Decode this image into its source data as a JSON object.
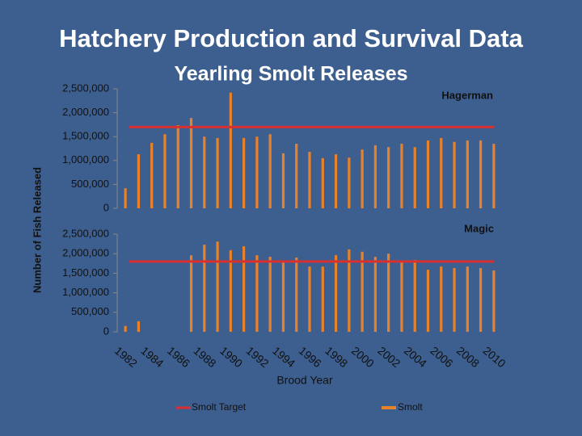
{
  "title": "Hatchery Production and Survival Data",
  "ylabel": "Number of Fish Released",
  "legend": [
    {
      "name": "Smolt Target",
      "color": "#d83030"
    },
    {
      "name": "Smolt",
      "color": "#e8822a"
    }
  ],
  "chart_data": [
    {
      "type": "bar",
      "title": "Yearling Smolt Releases",
      "label": "Hagerman",
      "ylim": [
        0,
        2500000
      ],
      "yticks": [
        0,
        {
          "value": 500000,
          "label": "500,000"
        },
        {
          "value": 1000000,
          "label": "1,000,000"
        },
        {
          "value": 1500000,
          "label": "1,500,000"
        },
        {
          "value": 2000000,
          "label": "2,000,000"
        },
        {
          "value": 2500000,
          "label": "2,500,000"
        }
      ],
      "values": [
        420000,
        1130000,
        1370000,
        1550000,
        1740000,
        1890000,
        1500000,
        1470000,
        2420000,
        1470000,
        1500000,
        1550000,
        1150000,
        1350000,
        1180000,
        1050000,
        1130000,
        1060000,
        1230000,
        1320000,
        1280000,
        1350000,
        1280000,
        1420000,
        1470000,
        1390000,
        1420000,
        1420000,
        1350000
      ],
      "target": 1700000
    },
    {
      "type": "bar",
      "label": "Magic",
      "xlabel": "Brood Year",
      "categories": [
        "1982",
        null,
        "1984",
        null,
        "1986",
        null,
        "1988",
        null,
        "1990",
        null,
        "1992",
        null,
        "1994",
        null,
        "1996",
        null,
        "1998",
        null,
        "2000",
        null,
        "2002",
        null,
        "2004",
        null,
        "2006",
        null,
        "2008",
        null,
        "2010"
      ],
      "ylim": [
        0,
        2500000
      ],
      "yticks": [
        0,
        {
          "value": 500000,
          "label": "500,000"
        },
        {
          "value": 1000000,
          "label": "1,000,000"
        },
        {
          "value": 1500000,
          "label": "1,500,000"
        },
        {
          "value": 2000000,
          "label": "2,000,000"
        },
        {
          "value": 2500000,
          "label": "2,500,000"
        }
      ],
      "values": [
        150000,
        270000,
        0,
        0,
        0,
        1960000,
        2230000,
        2310000,
        2090000,
        2190000,
        1960000,
        1920000,
        1780000,
        1900000,
        1670000,
        1670000,
        1960000,
        2110000,
        2050000,
        1920000,
        2000000,
        1780000,
        1840000,
        1590000,
        1670000,
        1630000,
        1670000,
        1630000,
        1570000
      ],
      "target": 1800000
    }
  ]
}
